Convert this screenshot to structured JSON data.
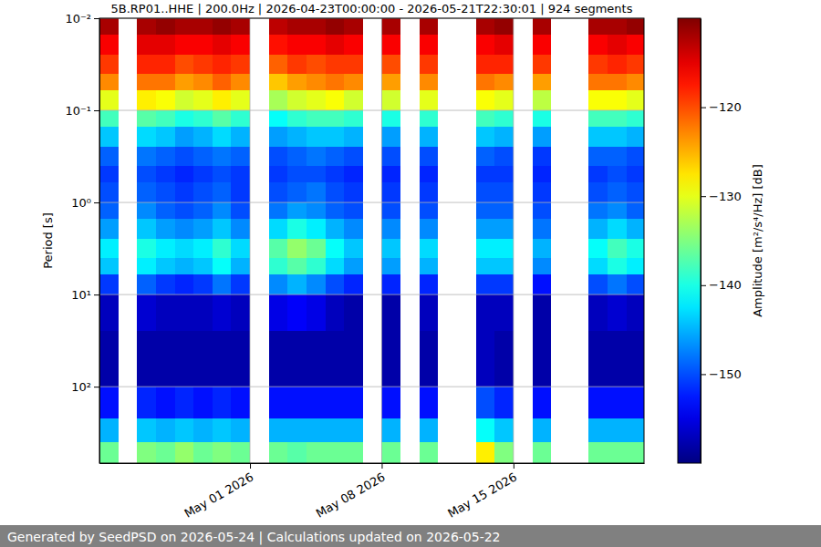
{
  "chart_data": {
    "type": "heatmap",
    "title": "5B.RP01..HHE | 200.0Hz | 2026-04-23T00:00:00 - 2026-05-21T22:30:01 | 924 segments",
    "ylabel": "Period [s]",
    "footer": "Generated by SeedPSD on 2026-05-24 | Calculations updated on 2026-05-22",
    "log": "y",
    "grid": true,
    "xlim": [
      "2026-04-23T00:00:00",
      "2026-05-21T22:30:01"
    ],
    "xticks": [
      {
        "value": "2026-05-01T00:00:00",
        "label": "May 01 2026"
      },
      {
        "value": "2026-05-08T00:00:00",
        "label": "May 08 2026"
      },
      {
        "value": "2026-05-15T00:00:00",
        "label": "May 15 2026"
      }
    ],
    "ylim": [
      0.01,
      676
    ],
    "yticks": [
      {
        "value": 0.01,
        "label": "10⁻²"
      },
      {
        "value": 0.1,
        "label": "10⁻¹"
      },
      {
        "value": 1,
        "label": "10⁰"
      },
      {
        "value": 10,
        "label": "10¹"
      },
      {
        "value": 100,
        "label": "10²"
      }
    ],
    "x": [
      "2026-04-23T00:00:00",
      "2026-04-24T00:00:00",
      "2026-04-25T00:00:00",
      "2026-04-26T00:00:00",
      "2026-04-27T00:00:00",
      "2026-04-28T00:00:00",
      "2026-04-29T00:00:00",
      "2026-04-30T00:00:00",
      "2026-05-01T00:00:00",
      "2026-05-02T00:00:00",
      "2026-05-03T00:00:00",
      "2026-05-04T00:00:00",
      "2026-05-05T00:00:00",
      "2026-05-06T00:00:00",
      "2026-05-07T00:00:00",
      "2026-05-08T00:00:00",
      "2026-05-09T00:00:00",
      "2026-05-10T00:00:00",
      "2026-05-11T00:00:00",
      "2026-05-12T00:00:00",
      "2026-05-13T00:00:00",
      "2026-05-14T00:00:00",
      "2026-05-15T00:00:00",
      "2026-05-16T00:00:00",
      "2026-05-17T00:00:00",
      "2026-05-18T00:00:00",
      "2026-05-19T00:00:00",
      "2026-05-20T00:00:00",
      "2026-05-21T00:00:00"
    ],
    "periods": [
      0.01,
      0.015,
      0.025,
      0.04,
      0.06,
      0.1,
      0.15,
      0.25,
      0.4,
      0.6,
      1,
      1.5,
      2.5,
      4,
      6,
      10,
      25,
      100,
      220,
      400,
      676
    ],
    "cells": [
      [
        -112,
        null,
        -112,
        -111,
        -112,
        -112,
        -111,
        -112,
        null,
        -113,
        -112,
        -112,
        -111,
        -112,
        null,
        -112,
        null,
        -112,
        null,
        null,
        -112,
        -111,
        null,
        -112,
        null,
        null,
        -112,
        -112,
        -111
      ],
      [
        -116,
        null,
        -115,
        -115,
        -116,
        -116,
        -115,
        -116,
        null,
        -117,
        -116,
        -116,
        -115,
        -116,
        null,
        -116,
        null,
        -116,
        null,
        null,
        -116,
        -115,
        null,
        -116,
        null,
        null,
        -116,
        -115,
        -116
      ],
      [
        -119,
        null,
        -118,
        -118,
        -120,
        -119,
        -118,
        -119,
        null,
        -121,
        -119,
        -120,
        -119,
        -119,
        null,
        -120,
        null,
        -119,
        null,
        null,
        -118,
        -118,
        null,
        -119,
        null,
        null,
        -119,
        -118,
        -119
      ],
      [
        -123,
        null,
        -122,
        -122,
        -124,
        -123,
        -121,
        -123,
        null,
        -126,
        -124,
        -123,
        -122,
        -123,
        null,
        -124,
        null,
        -123,
        null,
        null,
        -122,
        -123,
        null,
        -124,
        null,
        null,
        -122,
        -122,
        -123
      ],
      [
        -130,
        null,
        -128,
        -129,
        -131,
        -130,
        -128,
        -130,
        null,
        -133,
        -131,
        -130,
        -129,
        -131,
        null,
        -131,
        null,
        -130,
        null,
        null,
        -129,
        -130,
        null,
        -132,
        null,
        null,
        -129,
        -129,
        -130
      ],
      [
        -138,
        null,
        -137,
        -138,
        -140,
        -139,
        -137,
        -139,
        null,
        -141,
        -139,
        -138,
        -138,
        -139,
        null,
        -140,
        null,
        -139,
        null,
        null,
        -138,
        -139,
        null,
        -140,
        null,
        null,
        -138,
        -138,
        -139
      ],
      [
        -144,
        null,
        -143,
        -144,
        -146,
        -145,
        -143,
        -145,
        null,
        -146,
        -145,
        -144,
        -144,
        -145,
        null,
        -146,
        null,
        -145,
        null,
        null,
        -144,
        -145,
        null,
        -146,
        null,
        null,
        -144,
        -144,
        -145
      ],
      [
        -149,
        null,
        -148,
        -149,
        -150,
        -149,
        -148,
        -149,
        null,
        -150,
        -149,
        -148,
        -149,
        -150,
        null,
        -150,
        null,
        -150,
        null,
        null,
        -149,
        -150,
        null,
        -151,
        null,
        null,
        -149,
        -149,
        -150
      ],
      [
        -151,
        null,
        -150,
        -151,
        -152,
        -151,
        -150,
        -151,
        null,
        -151,
        -150,
        -150,
        -151,
        -152,
        null,
        -152,
        null,
        -152,
        null,
        null,
        -151,
        -151,
        null,
        -152,
        null,
        null,
        -151,
        -150,
        -151
      ],
      [
        -150,
        null,
        -149,
        -150,
        -151,
        -150,
        -149,
        -151,
        null,
        -150,
        -149,
        -148,
        -150,
        -151,
        null,
        -151,
        null,
        -151,
        null,
        null,
        -150,
        -150,
        null,
        -151,
        null,
        null,
        -150,
        -149,
        -150
      ],
      [
        -149,
        null,
        -147,
        -149,
        -150,
        -149,
        -147,
        -150,
        null,
        -148,
        -146,
        -147,
        -149,
        -150,
        null,
        -150,
        null,
        -150,
        null,
        null,
        -149,
        -149,
        null,
        -150,
        null,
        null,
        -148,
        -147,
        -149
      ],
      [
        -146,
        null,
        -144,
        -146,
        -147,
        -146,
        -144,
        -147,
        null,
        -143,
        -140,
        -142,
        -145,
        -147,
        null,
        -147,
        null,
        -147,
        null,
        null,
        -146,
        -146,
        null,
        -148,
        null,
        null,
        -145,
        -143,
        -145
      ],
      [
        -142,
        null,
        -140,
        -142,
        -143,
        -142,
        -139,
        -143,
        null,
        -137,
        -134,
        -136,
        -141,
        -144,
        null,
        -144,
        null,
        -143,
        null,
        null,
        -142,
        -142,
        null,
        -145,
        null,
        null,
        -141,
        -138,
        -140
      ],
      [
        -144,
        null,
        -142,
        -144,
        -145,
        -144,
        -141,
        -145,
        null,
        -139,
        -137,
        -139,
        -143,
        -146,
        null,
        -146,
        null,
        -145,
        null,
        null,
        -144,
        -144,
        null,
        -147,
        null,
        null,
        -143,
        -140,
        -142
      ],
      [
        -151,
        null,
        -149,
        -151,
        -152,
        -151,
        -148,
        -151,
        null,
        -147,
        -145,
        -147,
        -150,
        -152,
        null,
        -152,
        null,
        -152,
        null,
        null,
        -151,
        -151,
        null,
        -153,
        null,
        null,
        -150,
        -148,
        -150
      ],
      [
        -157,
        null,
        -156,
        -157,
        -157,
        -157,
        -156,
        -157,
        null,
        -155,
        -154,
        -155,
        -157,
        -158,
        null,
        -158,
        null,
        -157,
        null,
        null,
        -157,
        -157,
        null,
        -158,
        null,
        null,
        -157,
        -156,
        -157
      ],
      [
        -158,
        null,
        -158,
        -158,
        -158,
        -158,
        -158,
        -158,
        null,
        -158,
        -158,
        -158,
        -158,
        -158,
        null,
        -158,
        null,
        -158,
        null,
        null,
        -157,
        -158,
        null,
        -158,
        null,
        null,
        -158,
        -158,
        -158
      ],
      [
        -153,
        null,
        -152,
        -153,
        -152,
        -153,
        -152,
        -153,
        null,
        -153,
        -153,
        -153,
        -153,
        -153,
        null,
        -153,
        null,
        -153,
        null,
        null,
        -150,
        -152,
        null,
        -153,
        null,
        null,
        -153,
        -153,
        -153
      ],
      [
        -145,
        null,
        -144,
        -145,
        -144,
        -145,
        -144,
        -145,
        null,
        -145,
        -145,
        -145,
        -145,
        -145,
        null,
        -145,
        null,
        -145,
        null,
        null,
        -141,
        -144,
        null,
        -145,
        null,
        null,
        -145,
        -145,
        -145
      ],
      [
        -136,
        null,
        -135,
        -136,
        -134,
        -136,
        -135,
        -136,
        null,
        -136,
        -137,
        -136,
        -136,
        -136,
        null,
        -136,
        null,
        -136,
        null,
        null,
        -128,
        -135,
        null,
        -136,
        null,
        null,
        -136,
        -136,
        -136
      ]
    ],
    "colorbar": {
      "label": "Amplitude [m²/s⁴/Hz] [dB]",
      "lim": [
        -160,
        -110
      ],
      "ticks": [
        {
          "value": -150,
          "label": "−150"
        },
        {
          "value": -140,
          "label": "−140"
        },
        {
          "value": -130,
          "label": "−130"
        },
        {
          "value": -120,
          "label": "−120"
        }
      ]
    }
  }
}
